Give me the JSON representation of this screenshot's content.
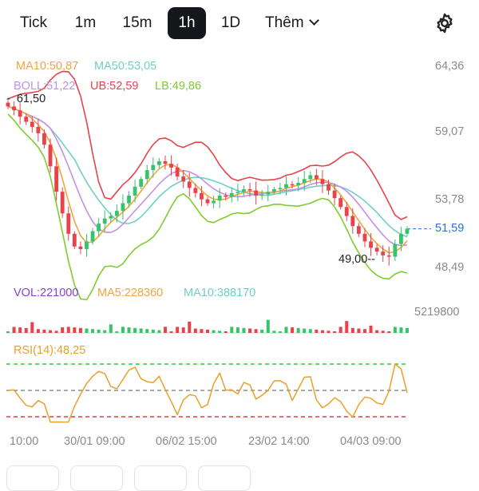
{
  "tabs": [
    {
      "label": "Tick",
      "active": false
    },
    {
      "label": "1m",
      "active": false
    },
    {
      "label": "15m",
      "active": false
    },
    {
      "label": "1h",
      "active": true
    },
    {
      "label": "1D",
      "active": false
    }
  ],
  "more_label": "Thêm",
  "settings_icon": "gear-icon",
  "legend": {
    "ma10": "MA10:50,87",
    "ma50": "MA50:53,05",
    "boll": "BOLL:51,22",
    "ub": "UB:52,59",
    "lb": "LB:49,86",
    "vol": "VOL:221000",
    "vol_ma5": "MA5:228360",
    "vol_ma10": "MA10:388170",
    "rsi": "RSI(14):48,25"
  },
  "colors": {
    "ma10": "#f2a53a",
    "ma50": "#6fd0c4",
    "boll": "#c58ee8",
    "ub": "#e8424a",
    "lb": "#7fcc2f",
    "vol": "#8a3fd1",
    "up": "#36c36a",
    "down": "#e8424a",
    "rsi": "#e8a12a",
    "last_price": "#2a6fe0"
  },
  "price_axis": [
    "64,36",
    "59,07",
    "53,78",
    "48,49"
  ],
  "volume_axis": "5219800",
  "last_price": "51,59",
  "high_marker": "61,50",
  "low_marker": "49,00",
  "x_axis": [
    "10:00",
    "30/01 09:00",
    "06/02 15:00",
    "23/02 14:00",
    "04/03 09:00"
  ],
  "chart_data": {
    "type": "candlestick",
    "y_range": [
      48.49,
      64.36
    ],
    "ticks": [
      64.36,
      59.07,
      53.78,
      48.49
    ],
    "last_price": 51.59,
    "period_high": 61.5,
    "period_low": 49.0,
    "close_series": [
      61.2,
      60.9,
      60.4,
      60.0,
      59.6,
      59.1,
      58.2,
      56.5,
      54.5,
      52.8,
      51.2,
      50.2,
      50.0,
      50.6,
      51.4,
      52.0,
      52.4,
      52.6,
      53.0,
      53.6,
      54.2,
      54.9,
      55.5,
      56.2,
      56.6,
      56.9,
      56.7,
      56.4,
      55.7,
      55.3,
      54.8,
      54.4,
      53.9,
      53.6,
      53.8,
      54.2,
      54.1,
      54.4,
      54.5,
      54.7,
      54.6,
      54.2,
      54.3,
      54.5,
      54.7,
      54.8,
      55.1,
      55.0,
      55.2,
      55.5,
      55.8,
      55.5,
      55.1,
      54.6,
      54.0,
      53.3,
      52.6,
      51.8,
      51.2,
      50.6,
      50.1,
      49.8,
      49.5,
      49.4,
      50.4,
      51.2,
      51.59
    ],
    "rsi": {
      "value": 48.25,
      "overbought": 70,
      "mid": 50,
      "oversold": 30
    }
  }
}
